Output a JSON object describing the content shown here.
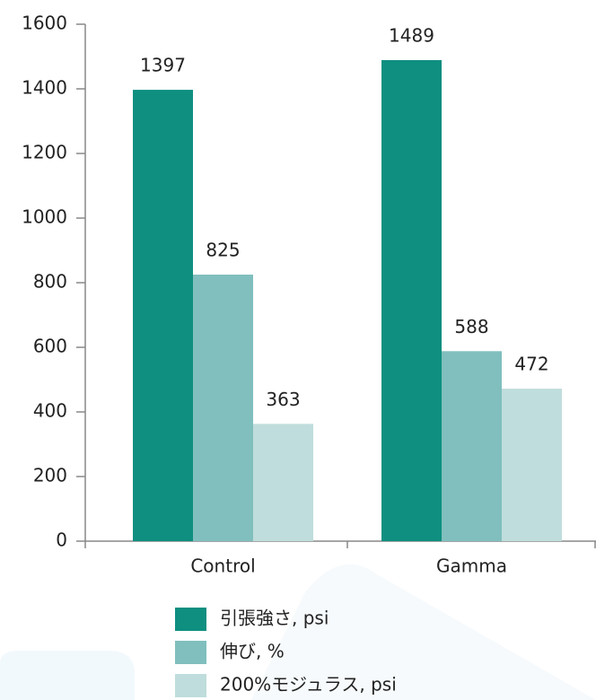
{
  "chart_data": {
    "type": "bar",
    "categories": [
      "Control",
      "Gamma"
    ],
    "series": [
      {
        "name": "引張強さ, psi",
        "color": "#0e8f80",
        "values": [
          1397,
          1489
        ]
      },
      {
        "name": "伸び, %",
        "color": "#80bfbe",
        "values": [
          825,
          588
        ]
      },
      {
        "name": "200%モジュラス, psi",
        "color": "#bfdddc",
        "values": [
          363,
          472
        ]
      }
    ],
    "ylim": [
      0,
      1600
    ],
    "yticks": [
      0,
      200,
      400,
      600,
      800,
      1000,
      1200,
      1400,
      1600
    ],
    "grid": false,
    "legend": "bottom"
  }
}
